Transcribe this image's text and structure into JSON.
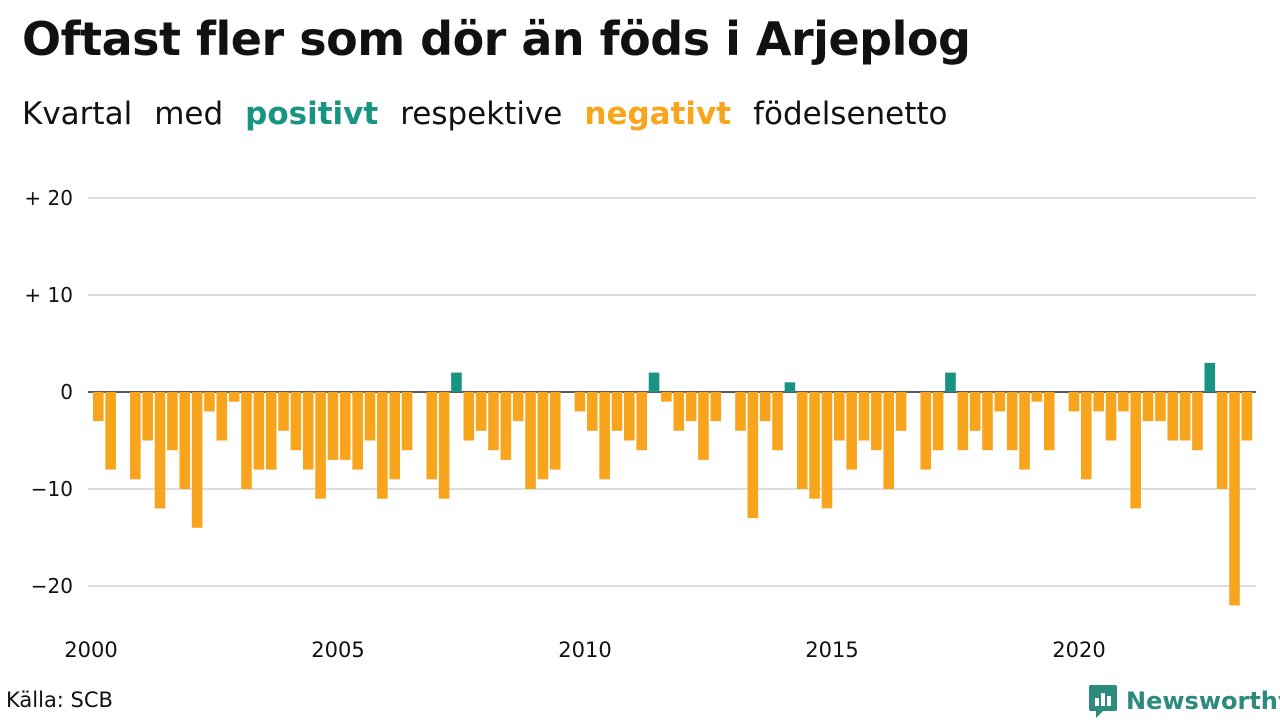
{
  "title": "Oftast fler som dör än föds i Arjeplog",
  "subtitle": {
    "w1": "Kvartal",
    "w2": "med",
    "pos": "positivt",
    "w3": "respektive",
    "neg": "negativt",
    "w4": "födelsenetto"
  },
  "source": "Källa: SCB",
  "brand": "Newsworthy",
  "colors": {
    "positive": "#1a9482",
    "negative": "#f8a51d",
    "grid": "#dddddd",
    "brand": "#2c8a7e"
  },
  "chart_data": {
    "type": "bar",
    "x_start": "2000 Q1",
    "x_ticks": [
      "2000",
      "2005",
      "2010",
      "2015",
      "2020"
    ],
    "y_ticks": [
      "+ 20",
      "+ 10",
      "0",
      "−10",
      "−20"
    ],
    "y_tick_values": [
      20,
      10,
      0,
      -10,
      -20
    ],
    "ylim": [
      -24,
      20
    ],
    "grid": true,
    "values": [
      -3,
      -8,
      0,
      -9,
      -5,
      -12,
      -6,
      -10,
      -14,
      -2,
      -5,
      -1,
      -10,
      -8,
      -8,
      -4,
      -6,
      -8,
      -11,
      -7,
      -7,
      -8,
      -5,
      -11,
      -9,
      -6,
      0,
      -9,
      -11,
      2,
      -5,
      -4,
      -6,
      -7,
      -3,
      -10,
      -9,
      -8,
      0,
      -2,
      -4,
      -9,
      -4,
      -5,
      -6,
      2,
      -1,
      -4,
      -3,
      -7,
      -3,
      0,
      -4,
      -13,
      -3,
      -6,
      1,
      -10,
      -11,
      -12,
      -5,
      -8,
      -5,
      -6,
      -10,
      -4,
      0,
      -8,
      -6,
      2,
      -6,
      -4,
      -6,
      -2,
      -6,
      -8,
      -1,
      -6,
      0,
      -2,
      -9,
      -2,
      -5,
      -2,
      -12,
      -3,
      -3,
      -5,
      -5,
      -6,
      3,
      -10,
      -22,
      -5
    ]
  }
}
